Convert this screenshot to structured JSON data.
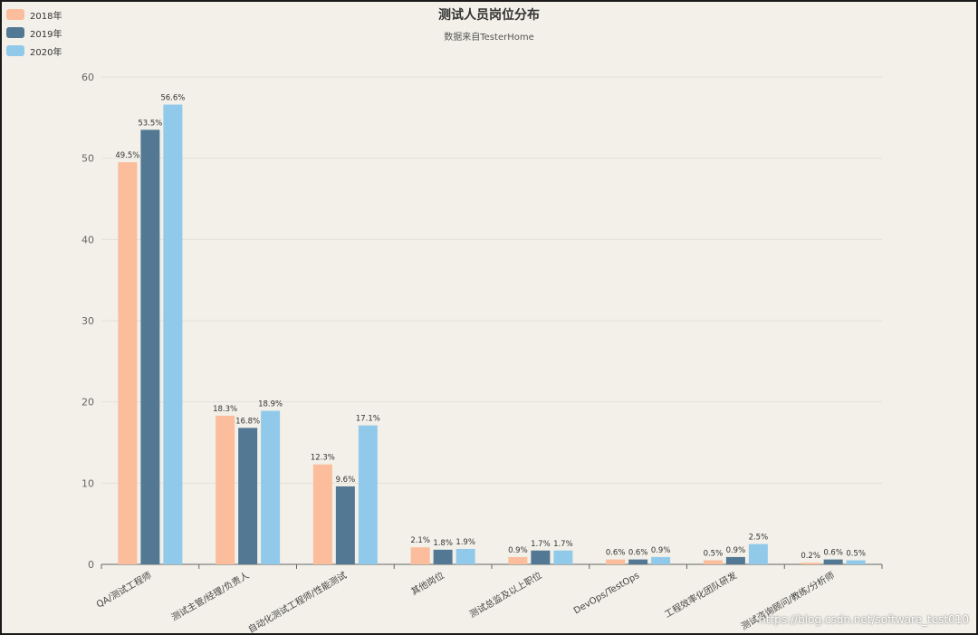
{
  "chart_data": {
    "type": "bar",
    "title": "测试人员岗位分布",
    "subtitle": "数据来自TesterHome",
    "xlabel": "",
    "ylabel": "",
    "ylim": [
      0,
      60
    ],
    "yticks": [
      0,
      10,
      20,
      30,
      40,
      50,
      60
    ],
    "grid": true,
    "legend_position": "top-left",
    "categories": [
      "QA/测试工程师",
      "测试主管/经理/负责人",
      "自动化测试工程师/性能测试",
      "其他岗位",
      "测试总监及以上职位",
      "DevOps/TestOps",
      "工程效率化团队研发",
      "测试咨询顾问/教练/分析师"
    ],
    "series": [
      {
        "name": "2018年",
        "color": "#fbbd9c",
        "values": [
          49.5,
          18.3,
          12.3,
          2.1,
          0.9,
          0.6,
          0.5,
          0.2
        ],
        "labels": [
          "49.5%",
          "18.3%",
          "12.3%",
          "2.1%",
          "0.9%",
          "0.6%",
          "0.5%",
          "0.2%"
        ]
      },
      {
        "name": "2019年",
        "color": "#527894",
        "values": [
          53.5,
          16.8,
          9.6,
          1.8,
          1.7,
          0.6,
          0.9,
          0.6
        ],
        "labels": [
          "53.5%",
          "16.8%",
          "9.6%",
          "1.8%",
          "1.7%",
          "0.6%",
          "0.9%",
          "0.6%"
        ]
      },
      {
        "name": "2020年",
        "color": "#91c9ea",
        "values": [
          56.6,
          18.9,
          17.1,
          1.9,
          1.7,
          0.9,
          2.5,
          0.5
        ],
        "labels": [
          "56.6%",
          "18.9%",
          "17.1%",
          "1.9%",
          "1.7%",
          "0.9%",
          "2.5%",
          "0.5%"
        ]
      }
    ]
  },
  "watermark": "https://blog.csdn.net/software_test010"
}
